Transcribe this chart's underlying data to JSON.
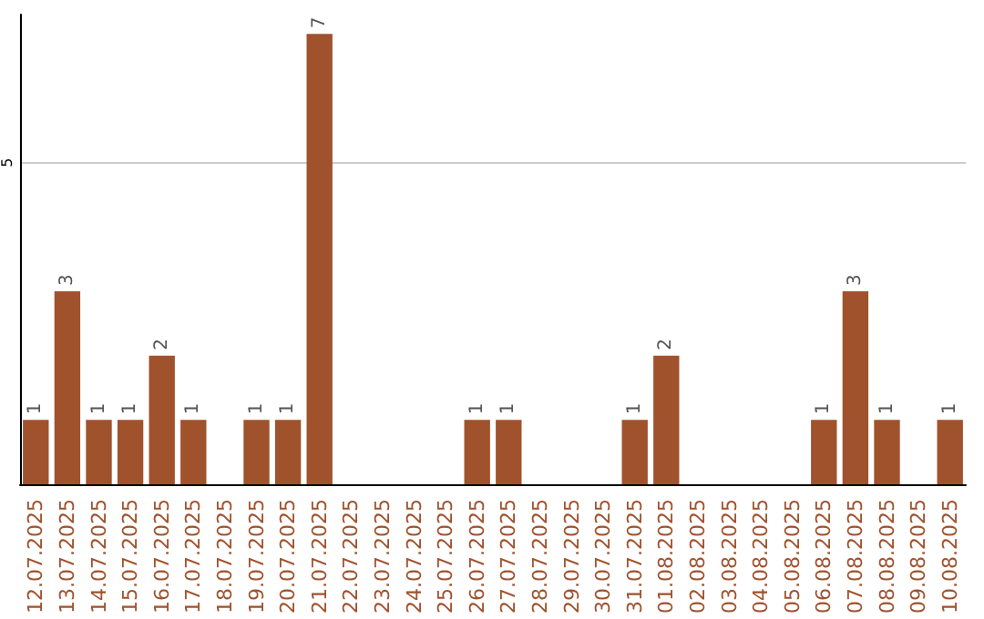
{
  "chart_data": {
    "type": "bar",
    "categories": [
      "12.07.2025",
      "13.07.2025",
      "14.07.2025",
      "15.07.2025",
      "16.07.2025",
      "17.07.2025",
      "18.07.2025",
      "19.07.2025",
      "20.07.2025",
      "21.07.2025",
      "22.07.2025",
      "23.07.2025",
      "24.07.2025",
      "25.07.2025",
      "26.07.2025",
      "27.07.2025",
      "28.07.2025",
      "29.07.2025",
      "30.07.2025",
      "31.07.2025",
      "01.08.2025",
      "02.08.2025",
      "03.08.2025",
      "04.08.2025",
      "05.08.2025",
      "06.08.2025",
      "07.08.2025",
      "08.08.2025",
      "09.08.2025",
      "10.08.2025"
    ],
    "values": [
      1,
      3,
      1,
      1,
      2,
      1,
      0,
      1,
      1,
      7,
      0,
      0,
      0,
      0,
      1,
      1,
      0,
      0,
      0,
      1,
      2,
      0,
      0,
      0,
      0,
      1,
      3,
      1,
      0,
      1
    ],
    "value_labels": [
      "1",
      "3",
      "1",
      "1",
      "2",
      "1",
      null,
      "1",
      "1",
      "7",
      null,
      null,
      null,
      null,
      "1",
      "1",
      null,
      null,
      null,
      "1",
      "2",
      null,
      null,
      null,
      null,
      "1",
      "3",
      "1",
      null,
      "1"
    ],
    "color": "#a0522d",
    "ylim": [
      0,
      7.3
    ],
    "yticks": [
      5
    ],
    "grid": "y"
  }
}
